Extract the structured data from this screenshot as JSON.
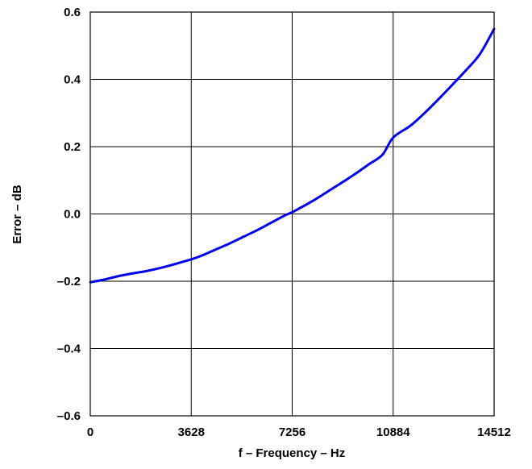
{
  "chart_data": {
    "type": "line",
    "xlabel": "f – Frequency – Hz",
    "ylabel": "Error – dB",
    "xlim": [
      0,
      14512
    ],
    "ylim": [
      -0.6,
      0.6
    ],
    "x_ticks": [
      0,
      3628,
      7256,
      10884,
      14512
    ],
    "x_tick_labels": [
      "0",
      "3628",
      "7256",
      "10884",
      "14512"
    ],
    "y_ticks": [
      -0.6,
      -0.4,
      -0.2,
      0.0,
      0.2,
      0.4,
      0.6
    ],
    "y_tick_labels": [
      "–0.6",
      "–0.4",
      "–0.2",
      "0.0",
      "0.2",
      "0.4",
      "0.6"
    ],
    "grid": true,
    "series": [
      {
        "color": "#0000ee",
        "x": [
          0,
          500,
          1000,
          1500,
          2000,
          2500,
          3000,
          3628,
          4000,
          4500,
          5000,
          5500,
          6000,
          6500,
          7000,
          7256,
          7500,
          8000,
          8500,
          9000,
          9500,
          10000,
          10500,
          10884,
          11500,
          12000,
          12500,
          13000,
          13500,
          14000,
          14512
        ],
        "y": [
          -0.203,
          -0.195,
          -0.185,
          -0.177,
          -0.17,
          -0.161,
          -0.15,
          -0.135,
          -0.124,
          -0.106,
          -0.088,
          -0.068,
          -0.048,
          -0.026,
          -0.004,
          0.005,
          0.016,
          0.039,
          0.065,
          0.091,
          0.118,
          0.147,
          0.176,
          0.227,
          0.262,
          0.299,
          0.34,
          0.383,
          0.427,
          0.475,
          0.55
        ]
      }
    ]
  }
}
